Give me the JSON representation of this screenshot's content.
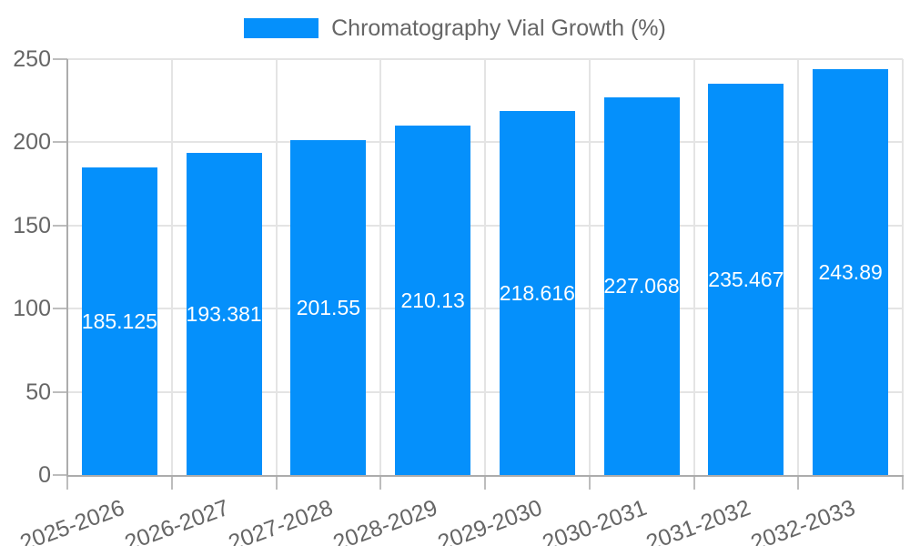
{
  "chart_data": {
    "type": "bar",
    "title": "Chromatography Vial Growth (%)",
    "categories": [
      "2025-2026",
      "2026-2027",
      "2027-2028",
      "2028-2029",
      "2029-2030",
      "2030-2031",
      "2031-2032",
      "2032-2033"
    ],
    "values": [
      185.125,
      193.381,
      201.55,
      210.13,
      218.616,
      227.068,
      235.467,
      243.89
    ],
    "value_labels": [
      "185.125",
      "193.381",
      "201.55",
      "210.13",
      "218.616",
      "227.068",
      "235.467",
      "243.89"
    ],
    "xlabel": "",
    "ylabel": "",
    "ylim": [
      0,
      250
    ],
    "yticks": [
      0,
      50,
      100,
      150,
      200,
      250
    ],
    "ytick_labels": [
      "0",
      "50",
      "100",
      "150",
      "200",
      "250"
    ],
    "grid": true,
    "legend_position": "top"
  },
  "colors": {
    "bar": "#0590FB",
    "grid": "#E4E4E4",
    "axis": "#ACACAC",
    "tick_mark": "#BDBDBD",
    "axis_text": "#666666",
    "legend_text": "#666666",
    "data_label": "#FFFFFF",
    "background": "#FFFFFF"
  }
}
